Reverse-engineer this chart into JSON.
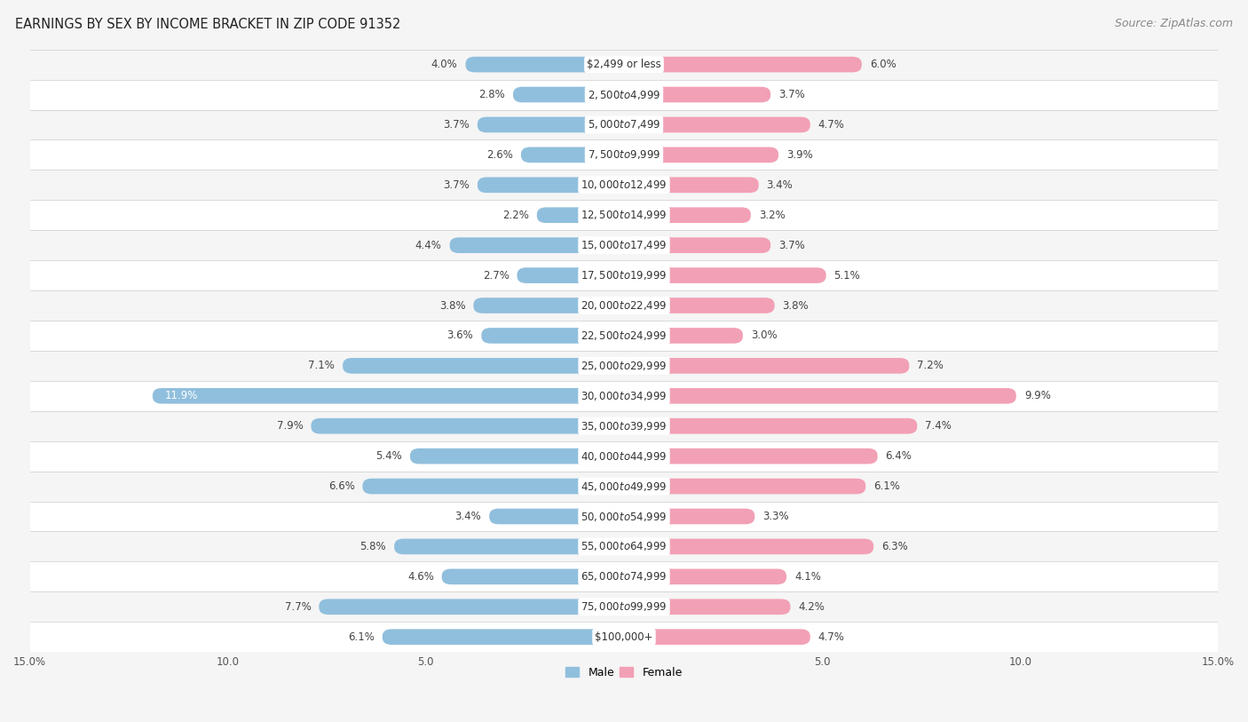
{
  "title": "EARNINGS BY SEX BY INCOME BRACKET IN ZIP CODE 91352",
  "source": "Source: ZipAtlas.com",
  "categories": [
    "$2,499 or less",
    "$2,500 to $4,999",
    "$5,000 to $7,499",
    "$7,500 to $9,999",
    "$10,000 to $12,499",
    "$12,500 to $14,999",
    "$15,000 to $17,499",
    "$17,500 to $19,999",
    "$20,000 to $22,499",
    "$22,500 to $24,999",
    "$25,000 to $29,999",
    "$30,000 to $34,999",
    "$35,000 to $39,999",
    "$40,000 to $44,999",
    "$45,000 to $49,999",
    "$50,000 to $54,999",
    "$55,000 to $64,999",
    "$65,000 to $74,999",
    "$75,000 to $99,999",
    "$100,000+"
  ],
  "male_values": [
    4.0,
    2.8,
    3.7,
    2.6,
    3.7,
    2.2,
    4.4,
    2.7,
    3.8,
    3.6,
    7.1,
    11.9,
    7.9,
    5.4,
    6.6,
    3.4,
    5.8,
    4.6,
    7.7,
    6.1
  ],
  "female_values": [
    6.0,
    3.7,
    4.7,
    3.9,
    3.4,
    3.2,
    3.7,
    5.1,
    3.8,
    3.0,
    7.2,
    9.9,
    7.4,
    6.4,
    6.1,
    3.3,
    6.3,
    4.1,
    4.2,
    4.7
  ],
  "male_color": "#90bfdd",
  "female_color": "#f2a0b5",
  "male_label": "Male",
  "female_label": "Female",
  "xlim": 15.0,
  "row_colors": [
    "#f5f5f5",
    "#ffffff"
  ],
  "title_fontsize": 10.5,
  "source_fontsize": 9,
  "cat_fontsize": 8.5,
  "value_fontsize": 8.5,
  "tick_fontsize": 8.5,
  "bar_height": 0.52
}
